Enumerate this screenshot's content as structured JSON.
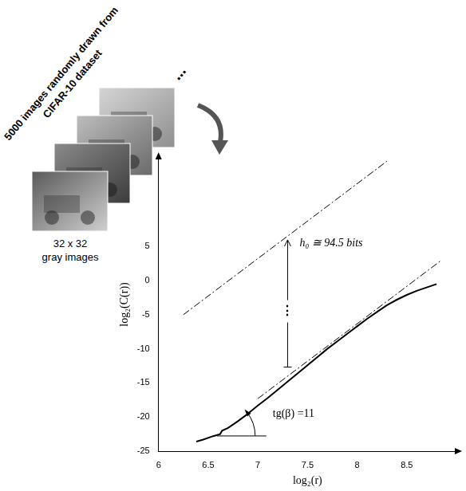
{
  "chart_data": {
    "type": "line",
    "x_label": "log₂(r)",
    "y_label": "log₂(C(r))",
    "xlim": [
      6,
      9
    ],
    "ylim": [
      -25,
      18
    ],
    "xticks": [
      6,
      6.5,
      7,
      7.5,
      8,
      8.5
    ],
    "yticks": [
      -25,
      -20,
      -15,
      -10,
      -5,
      0,
      5
    ],
    "grid": false,
    "series": [
      {
        "color": "#000000",
        "line_style": "solid",
        "x": [
          6.38,
          6.45,
          6.55,
          6.62,
          6.64,
          6.7,
          6.8,
          6.9,
          7.0,
          7.1,
          7.2,
          7.3,
          7.4,
          7.5,
          7.6,
          7.7,
          7.8,
          7.9,
          8.0,
          8.1,
          8.2,
          8.3,
          8.4,
          8.5,
          8.6,
          8.7,
          8.8
        ],
        "values": [
          -23.6,
          -23.3,
          -22.8,
          -22.5,
          -22.0,
          -21.6,
          -20.6,
          -19.5,
          -18.3,
          -17.2,
          -16.0,
          -14.8,
          -13.6,
          -12.4,
          -11.2,
          -10.0,
          -8.9,
          -7.8,
          -6.7,
          -5.6,
          -4.6,
          -3.6,
          -2.8,
          -2.1,
          -1.5,
          -1.0,
          -0.5
        ]
      },
      {
        "color": "#000000",
        "line_style": "dashdot",
        "x": [
          7.0,
          8.85
        ],
        "values": [
          -17.3,
          3.0
        ]
      },
      {
        "color": "#000000",
        "line_style": "dashdot",
        "x": [
          6.25,
          8.3
        ],
        "values": [
          -5.0,
          17.5
        ]
      }
    ],
    "annotations": [
      {
        "text": "h₀ ≅ 94.5 bits",
        "x": 7.42,
        "y": 5.5
      },
      {
        "text": "⋮",
        "x": 7.3,
        "y": -4.5
      },
      {
        "text": "tg(β) =11",
        "x": 7.15,
        "y": -19.5
      }
    ]
  },
  "figure": {
    "side_text": [
      "5000 images randomly drawn from",
      "CIFAR-10 dataset"
    ],
    "ellipsis": "⋯",
    "image_caption": [
      "32  x  32",
      "gray images"
    ]
  }
}
